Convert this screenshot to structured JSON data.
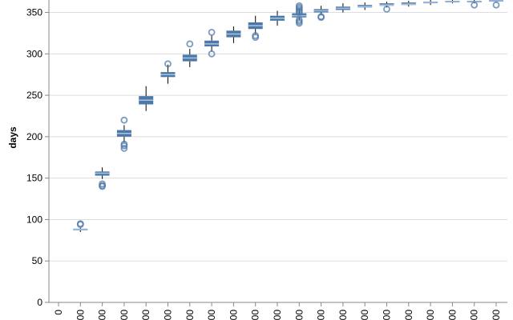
{
  "chart_data": {
    "type": "boxplot",
    "ylabel": "days",
    "xlabel": "",
    "ylim": [
      0,
      365
    ],
    "y_ticks": [
      0,
      50,
      100,
      150,
      200,
      250,
      300,
      350
    ],
    "x_tick_labels": [
      "0",
      "00",
      "00",
      "00",
      "00",
      "00",
      "00",
      "00",
      "00",
      "00",
      "00",
      "00",
      "00",
      "00",
      "00",
      "00",
      "00",
      "00",
      "00",
      "00",
      "00",
      "00"
    ],
    "grid": true,
    "colors": {
      "box": "#4c78a8",
      "median": "#a9c4e0",
      "whisker": "#000000",
      "outlier": "#4c78a8",
      "grid": "#dddddd"
    },
    "boxes": [
      {
        "q1": 87,
        "median": 88,
        "q3": 89,
        "low": 85,
        "high": 90,
        "outliers": [
          94,
          95
        ]
      },
      {
        "q1": 153,
        "median": 156,
        "q3": 158,
        "low": 149,
        "high": 163,
        "outliers": [
          140,
          141,
          143
        ]
      },
      {
        "q1": 200,
        "median": 204,
        "q3": 208,
        "low": 193,
        "high": 214,
        "outliers": [
          186,
          189,
          191,
          220
        ]
      },
      {
        "q1": 239,
        "median": 244,
        "q3": 249,
        "low": 231,
        "high": 261,
        "outliers": []
      },
      {
        "q1": 272,
        "median": 275,
        "q3": 278,
        "low": 264,
        "high": 287,
        "outliers": [
          288
        ]
      },
      {
        "q1": 291,
        "median": 295,
        "q3": 299,
        "low": 284,
        "high": 306,
        "outliers": [
          312
        ]
      },
      {
        "q1": 309,
        "median": 312,
        "q3": 316,
        "low": 303,
        "high": 322,
        "outliers": [
          300,
          326
        ]
      },
      {
        "q1": 320,
        "median": 324,
        "q3": 328,
        "low": 313,
        "high": 333,
        "outliers": []
      },
      {
        "q1": 330,
        "median": 334,
        "q3": 338,
        "low": 324,
        "high": 346,
        "outliers": [
          320,
          322
        ]
      },
      {
        "q1": 340,
        "median": 343,
        "q3": 346,
        "low": 334,
        "high": 352,
        "outliers": []
      },
      {
        "q1": 344,
        "median": 346,
        "q3": 349,
        "low": 341,
        "high": 354,
        "outliers": [
          337,
          339,
          341,
          350,
          352,
          354,
          356,
          358
        ]
      },
      {
        "q1": 350,
        "median": 352,
        "q3": 354,
        "low": 347,
        "high": 358,
        "outliers": [
          344,
          345
        ]
      },
      {
        "q1": 353,
        "median": 355,
        "q3": 357,
        "low": 350,
        "high": 361,
        "outliers": []
      },
      {
        "q1": 356,
        "median": 357,
        "q3": 359,
        "low": 353,
        "high": 362,
        "outliers": []
      },
      {
        "q1": 358,
        "median": 359,
        "q3": 361,
        "low": 356,
        "high": 363,
        "outliers": [
          354
        ]
      },
      {
        "q1": 359,
        "median": 360,
        "q3": 362,
        "low": 357,
        "high": 364,
        "outliers": []
      },
      {
        "q1": 361,
        "median": 362,
        "q3": 363,
        "low": 359,
        "high": 365,
        "outliers": []
      },
      {
        "q1": 362,
        "median": 363,
        "q3": 364,
        "low": 361,
        "high": 365,
        "outliers": []
      },
      {
        "q1": 362,
        "median": 363,
        "q3": 364,
        "low": 361,
        "high": 365,
        "outliers": [
          359
        ]
      },
      {
        "q1": 363,
        "median": 364,
        "q3": 365,
        "low": 362,
        "high": 365,
        "outliers": [
          359
        ]
      }
    ]
  }
}
